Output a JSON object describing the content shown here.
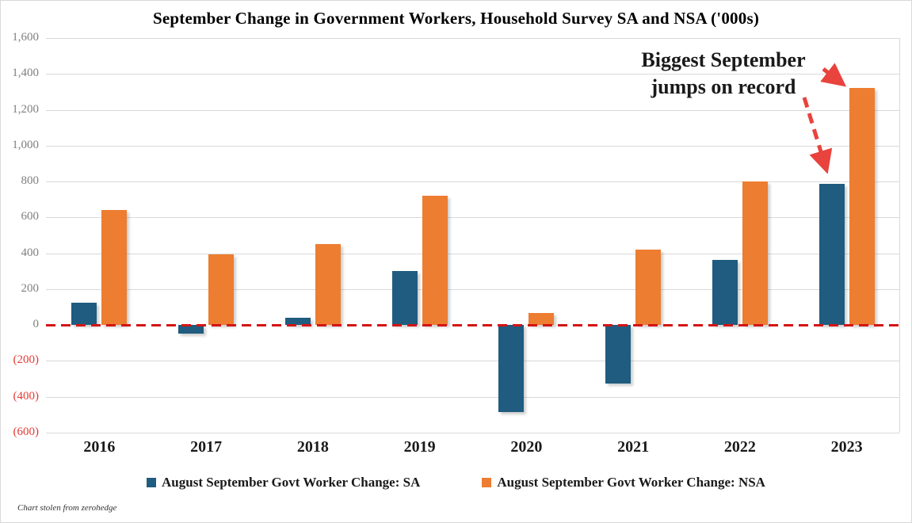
{
  "title": "September Change in Government Workers, Household Survey SA and NSA ('000s)",
  "annotation": {
    "line1": "Biggest September",
    "line2": "jumps on record"
  },
  "footnote": "Chart stolen from zerohedge",
  "colors": {
    "sa_bar": "#1f5c7f",
    "nsa_bar": "#ed7d31",
    "zero_line": "#d41414",
    "arrow": "#e8433c",
    "gridline": "#d9d9d9",
    "tick_positive": "#7f7f7f",
    "tick_negative": "#e53935",
    "axis_text": "#1a1a1a"
  },
  "chart_data": {
    "type": "bar",
    "title": "September Change in Government Workers, Household Survey SA and NSA ('000s)",
    "categories": [
      "2016",
      "2017",
      "2018",
      "2019",
      "2020",
      "2021",
      "2022",
      "2023"
    ],
    "series": [
      {
        "name": "August September Govt Worker Change: SA",
        "color": "#1f5c7f",
        "values": [
          125,
          -50,
          40,
          300,
          -485,
          -325,
          365,
          785
        ]
      },
      {
        "name": "August September Govt Worker Change: NSA",
        "color": "#ed7d31",
        "values": [
          640,
          395,
          450,
          720,
          65,
          420,
          800,
          1320
        ]
      }
    ],
    "ylim": [
      -600,
      1600
    ],
    "ytick_step": 200,
    "ytick_labels": [
      "1,600",
      "1,400",
      "1,200",
      "1,000",
      "800",
      "600",
      "400",
      "200",
      "0",
      "(200)",
      "(400)",
      "(600)"
    ],
    "grid": true,
    "zero_line": "dashed red horizontal line at 0",
    "legend_position": "bottom",
    "annotation": "Biggest September jumps on record (arrows pointing to 2023 SA and NSA bars)"
  }
}
